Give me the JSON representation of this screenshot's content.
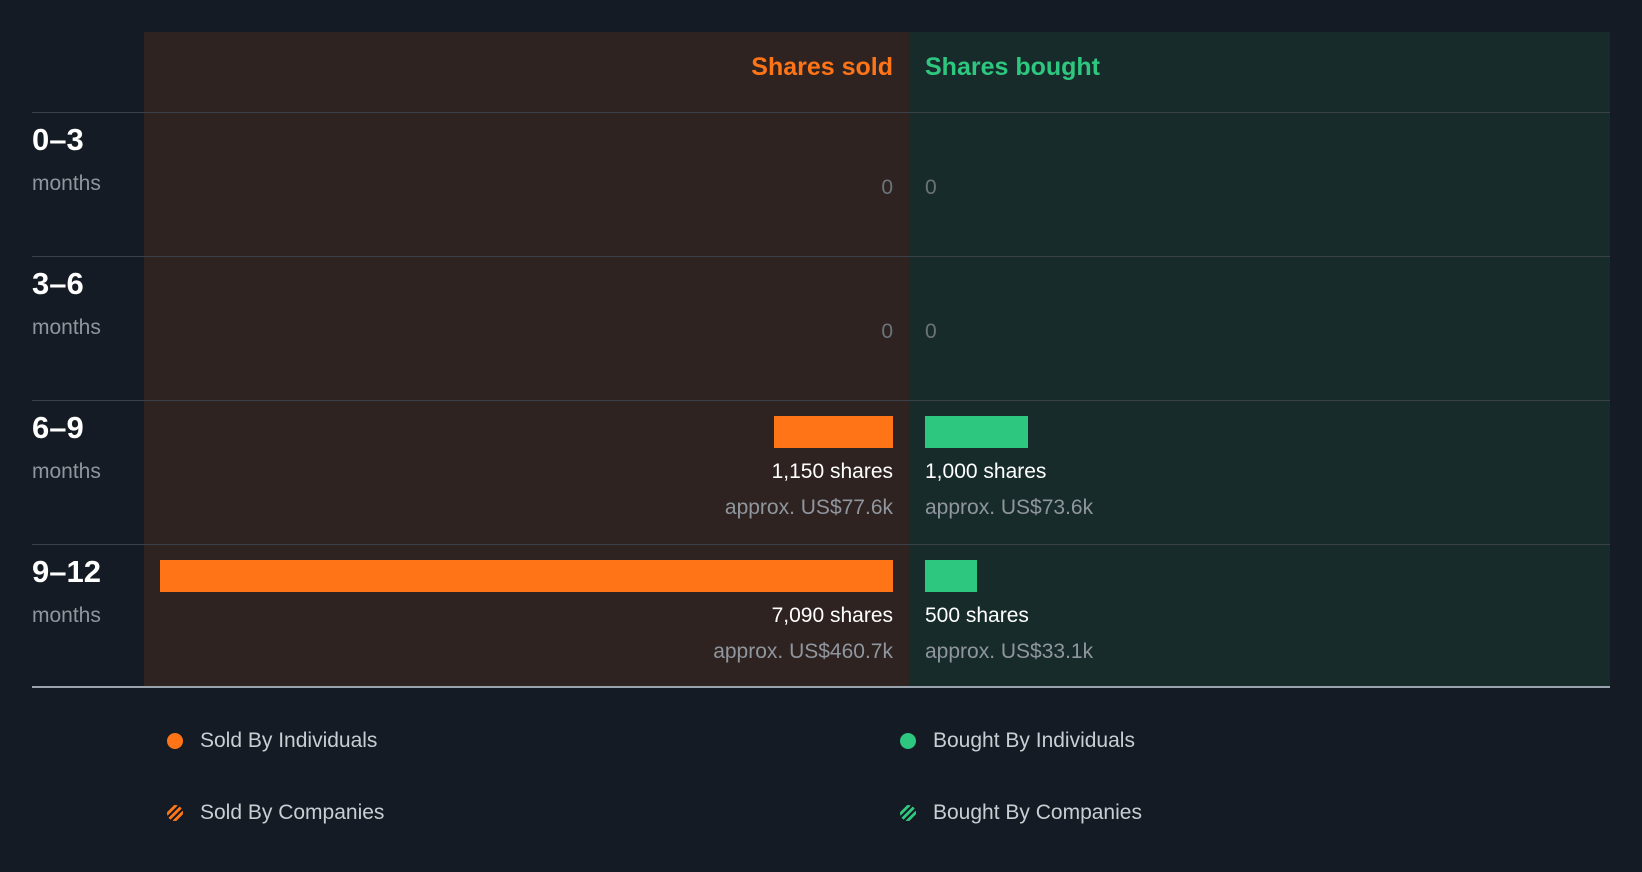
{
  "colors": {
    "sold": "#ff7417",
    "bought": "#2ec77f"
  },
  "chart_data": {
    "type": "bar",
    "title": "",
    "headers": {
      "sold": "Shares sold",
      "bought": "Shares bought"
    },
    "rows": [
      {
        "period": "0–3",
        "unit": "months",
        "sold": {
          "zero": "0"
        },
        "bought": {
          "zero": "0"
        }
      },
      {
        "period": "3–6",
        "unit": "months",
        "sold": {
          "zero": "0"
        },
        "bought": {
          "zero": "0"
        }
      },
      {
        "period": "6–9",
        "unit": "months",
        "sold": {
          "value": 1150,
          "shares": "1,150 shares",
          "approx": "approx. US$77.6k"
        },
        "bought": {
          "value": 1000,
          "shares": "1,000 shares",
          "approx": "approx. US$73.6k"
        }
      },
      {
        "period": "9–12",
        "unit": "months",
        "sold": {
          "value": 7090,
          "shares": "7,090 shares",
          "approx": "approx. US$460.7k"
        },
        "bought": {
          "value": 500,
          "shares": "500 shares",
          "approx": "approx. US$33.1k"
        }
      }
    ],
    "max_value": 7090,
    "legend": [
      {
        "label": "Sold By Individuals",
        "marker": "dot",
        "color": "#ff7417"
      },
      {
        "label": "Bought By Individuals",
        "marker": "dot",
        "color": "#2ec77f"
      },
      {
        "label": "Sold By Companies",
        "marker": "stripe",
        "color": "#ff7417"
      },
      {
        "label": "Bought By Companies",
        "marker": "stripe",
        "color": "#2ec77f"
      }
    ]
  }
}
